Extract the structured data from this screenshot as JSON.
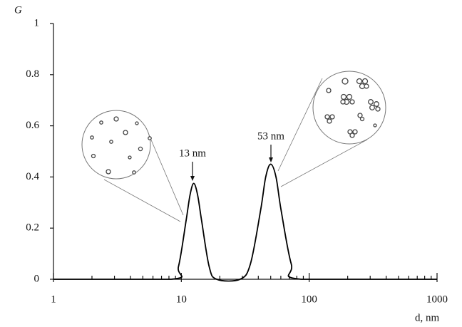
{
  "chart_data": {
    "type": "line",
    "y_label": "G",
    "x_label": "d, nm",
    "x": [
      1,
      8.3,
      9.5,
      10.9,
      11.7,
      12.5,
      13.4,
      14.4,
      16.5,
      18.9,
      28.8,
      34.7,
      41.7,
      45.7,
      50,
      55,
      60.3,
      72.4,
      87.1,
      1000
    ],
    "series": [
      {
        "color": "#000000",
        "values": [
          0,
          0,
          0.05,
          0.23,
          0.33,
          0.375,
          0.33,
          0.23,
          0.05,
          0,
          0,
          0.06,
          0.27,
          0.4,
          0.45,
          0.4,
          0.27,
          0.06,
          0,
          0
        ]
      }
    ],
    "xlim": [
      1,
      1000
    ],
    "xticks": [
      1,
      10,
      100,
      1000
    ],
    "xscale": "log",
    "ylim": [
      0,
      1
    ],
    "yticks": [
      0,
      0.2,
      0.4,
      0.6,
      0.8,
      1
    ],
    "annotations": [
      "13 nm",
      "53 nm"
    ]
  }
}
